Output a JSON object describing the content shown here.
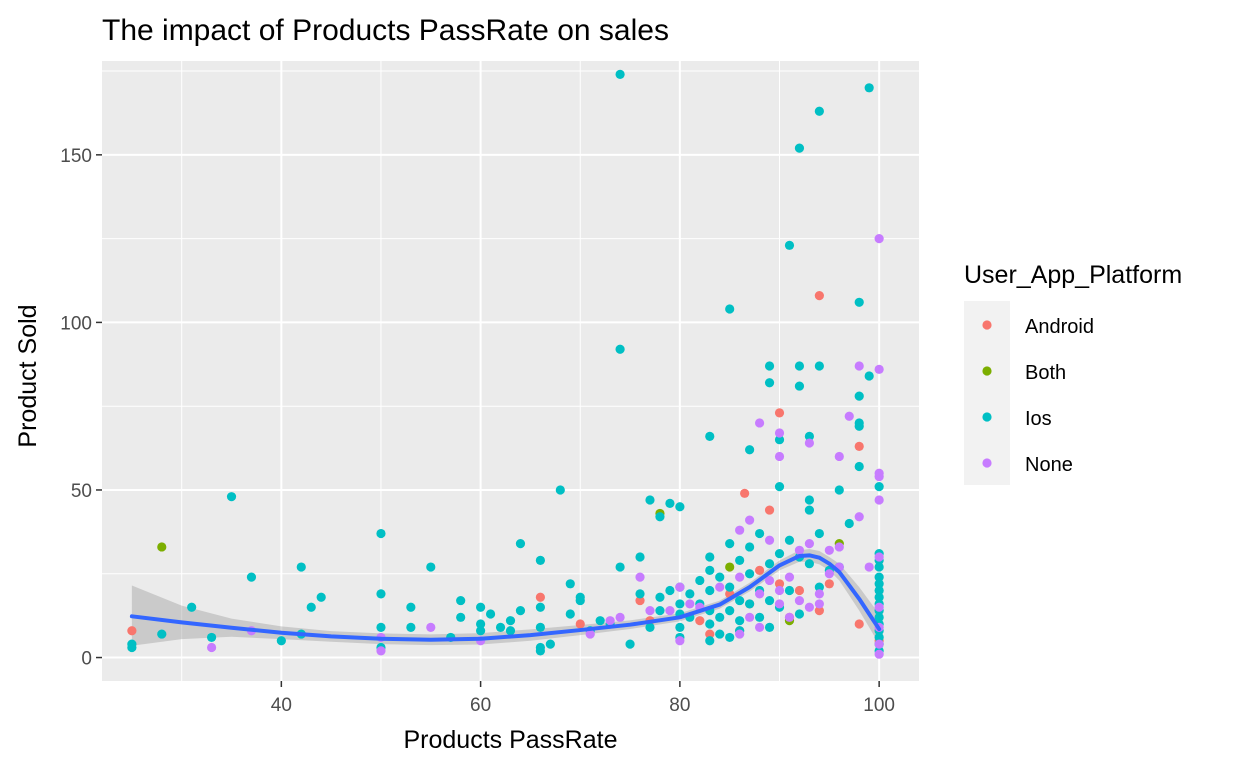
{
  "chart_data": {
    "type": "scatter",
    "title": "The impact of Products PassRate on sales",
    "xlabel": "Products PassRate",
    "ylabel": "Product Sold",
    "xlim": [
      22,
      104
    ],
    "ylim": [
      -7,
      178
    ],
    "x_ticks": [
      40,
      60,
      80,
      100
    ],
    "y_ticks": [
      0,
      50,
      100,
      150
    ],
    "x_tick_labels": [
      "40",
      "60",
      "80",
      "100"
    ],
    "y_tick_labels": [
      "0",
      "50",
      "100",
      "150"
    ],
    "grid": true,
    "panel_background": "#ebebeb",
    "legend": {
      "title": "User_App_Platform",
      "position": "right",
      "entries": [
        {
          "label": "Android",
          "color": "#f8766d"
        },
        {
          "label": "Both",
          "color": "#7cae00"
        },
        {
          "label": "Ios",
          "color": "#00bfc4"
        },
        {
          "label": "None",
          "color": "#c77cff"
        }
      ]
    },
    "series": [
      {
        "name": "Android",
        "color": "#f8766d",
        "points": [
          [
            25,
            8
          ],
          [
            66,
            18
          ],
          [
            70,
            10
          ],
          [
            76,
            17
          ],
          [
            77,
            11
          ],
          [
            82,
            11
          ],
          [
            83,
            7
          ],
          [
            85,
            19
          ],
          [
            86,
            8
          ],
          [
            86.5,
            49
          ],
          [
            87,
            16
          ],
          [
            88,
            26
          ],
          [
            89,
            44
          ],
          [
            90,
            73
          ],
          [
            90,
            22
          ],
          [
            91,
            12
          ],
          [
            92,
            20
          ],
          [
            94,
            108
          ],
          [
            94,
            14
          ],
          [
            95,
            22
          ],
          [
            98,
            63
          ],
          [
            98,
            10
          ],
          [
            100,
            5
          ]
        ]
      },
      {
        "name": "Both",
        "color": "#7cae00",
        "points": [
          [
            28,
            33
          ],
          [
            78,
            43
          ],
          [
            85,
            27
          ],
          [
            91,
            11
          ],
          [
            96,
            34
          ]
        ]
      },
      {
        "name": "Ios",
        "color": "#00bfc4",
        "points": [
          [
            25,
            3
          ],
          [
            25,
            4
          ],
          [
            28,
            7
          ],
          [
            31,
            15
          ],
          [
            33,
            6
          ],
          [
            35,
            48
          ],
          [
            37,
            24
          ],
          [
            40,
            5
          ],
          [
            42,
            27
          ],
          [
            42,
            7
          ],
          [
            43,
            15
          ],
          [
            44,
            18
          ],
          [
            50,
            37
          ],
          [
            50,
            19
          ],
          [
            50,
            9
          ],
          [
            50,
            3
          ],
          [
            53,
            15
          ],
          [
            53,
            9
          ],
          [
            55,
            27
          ],
          [
            57,
            6
          ],
          [
            58,
            17
          ],
          [
            58,
            12
          ],
          [
            60,
            15
          ],
          [
            60,
            10
          ],
          [
            60,
            8
          ],
          [
            61,
            13
          ],
          [
            62,
            9
          ],
          [
            63,
            8
          ],
          [
            63,
            11
          ],
          [
            64,
            14
          ],
          [
            64,
            34
          ],
          [
            66,
            29
          ],
          [
            66,
            15
          ],
          [
            66,
            9
          ],
          [
            66,
            3
          ],
          [
            66,
            2
          ],
          [
            67,
            4
          ],
          [
            68,
            50
          ],
          [
            69,
            13
          ],
          [
            69,
            22
          ],
          [
            70,
            18
          ],
          [
            70,
            17
          ],
          [
            71,
            8
          ],
          [
            72,
            11
          ],
          [
            73,
            10
          ],
          [
            74,
            174
          ],
          [
            74,
            92
          ],
          [
            74,
            27
          ],
          [
            75,
            4
          ],
          [
            76,
            30
          ],
          [
            76,
            19
          ],
          [
            77,
            47
          ],
          [
            77,
            9
          ],
          [
            78,
            42
          ],
          [
            78,
            18
          ],
          [
            78,
            14
          ],
          [
            79,
            46
          ],
          [
            79,
            20
          ],
          [
            80,
            45
          ],
          [
            80,
            21
          ],
          [
            80,
            16
          ],
          [
            80,
            13
          ],
          [
            80,
            9
          ],
          [
            80,
            6
          ],
          [
            81,
            12
          ],
          [
            81,
            19
          ],
          [
            82,
            23
          ],
          [
            82,
            16
          ],
          [
            83,
            66
          ],
          [
            83,
            30
          ],
          [
            83,
            26
          ],
          [
            83,
            20
          ],
          [
            83,
            14
          ],
          [
            83,
            10
          ],
          [
            83,
            5
          ],
          [
            84,
            24
          ],
          [
            84,
            12
          ],
          [
            84,
            7
          ],
          [
            85,
            104
          ],
          [
            85,
            34
          ],
          [
            85,
            21
          ],
          [
            85,
            14
          ],
          [
            85,
            6
          ],
          [
            86,
            29
          ],
          [
            86,
            17
          ],
          [
            86,
            11
          ],
          [
            86,
            8
          ],
          [
            87,
            62
          ],
          [
            87,
            33
          ],
          [
            87,
            25
          ],
          [
            87,
            16
          ],
          [
            88,
            37
          ],
          [
            88,
            20
          ],
          [
            88,
            12
          ],
          [
            89,
            87
          ],
          [
            89,
            82
          ],
          [
            89,
            28
          ],
          [
            89,
            17
          ],
          [
            89,
            9
          ],
          [
            90,
            65
          ],
          [
            90,
            51
          ],
          [
            90,
            31
          ],
          [
            90,
            15
          ],
          [
            91,
            123
          ],
          [
            91,
            35
          ],
          [
            91,
            20
          ],
          [
            92,
            152
          ],
          [
            92,
            87
          ],
          [
            92,
            81
          ],
          [
            92,
            30
          ],
          [
            92,
            13
          ],
          [
            93,
            66
          ],
          [
            93,
            47
          ],
          [
            93,
            44
          ],
          [
            93,
            28
          ],
          [
            94,
            163
          ],
          [
            94,
            87
          ],
          [
            94,
            37
          ],
          [
            94,
            21
          ],
          [
            95,
            26
          ],
          [
            96,
            50
          ],
          [
            96,
            27
          ],
          [
            97,
            40
          ],
          [
            98,
            106
          ],
          [
            98,
            78
          ],
          [
            98,
            70
          ],
          [
            98,
            57
          ],
          [
            98,
            69
          ],
          [
            99,
            170
          ],
          [
            99,
            84
          ],
          [
            100,
            51
          ],
          [
            100,
            31
          ],
          [
            100,
            29
          ],
          [
            100,
            27
          ],
          [
            100,
            24
          ],
          [
            100,
            22
          ],
          [
            100,
            20
          ],
          [
            100,
            18
          ],
          [
            100,
            16
          ],
          [
            100,
            14
          ],
          [
            100,
            12
          ],
          [
            100,
            10
          ],
          [
            100,
            8
          ],
          [
            100,
            6
          ],
          [
            100,
            4
          ],
          [
            100,
            2
          ]
        ]
      },
      {
        "name": "None",
        "color": "#c77cff",
        "points": [
          [
            33,
            3
          ],
          [
            37,
            8
          ],
          [
            50,
            6
          ],
          [
            50,
            2
          ],
          [
            55,
            9
          ],
          [
            60,
            5
          ],
          [
            71,
            7
          ],
          [
            73,
            11
          ],
          [
            74,
            12
          ],
          [
            76,
            24
          ],
          [
            77,
            14
          ],
          [
            79,
            14
          ],
          [
            80,
            21
          ],
          [
            80,
            5
          ],
          [
            81,
            16
          ],
          [
            82,
            15
          ],
          [
            84,
            21
          ],
          [
            86,
            38
          ],
          [
            86,
            24
          ],
          [
            86,
            7
          ],
          [
            87,
            41
          ],
          [
            87,
            12
          ],
          [
            88,
            70
          ],
          [
            88,
            19
          ],
          [
            88,
            9
          ],
          [
            89,
            35
          ],
          [
            89,
            23
          ],
          [
            90,
            67
          ],
          [
            90,
            60
          ],
          [
            90,
            20
          ],
          [
            90,
            16
          ],
          [
            91,
            24
          ],
          [
            91,
            12
          ],
          [
            92,
            32
          ],
          [
            92,
            17
          ],
          [
            93,
            64
          ],
          [
            93,
            34
          ],
          [
            93,
            15
          ],
          [
            94,
            19
          ],
          [
            94,
            16
          ],
          [
            95,
            25
          ],
          [
            95,
            32
          ],
          [
            96,
            60
          ],
          [
            96,
            33
          ],
          [
            96,
            27
          ],
          [
            97,
            72
          ],
          [
            98,
            87
          ],
          [
            98,
            42
          ],
          [
            99,
            27
          ],
          [
            100,
            125
          ],
          [
            100,
            86
          ],
          [
            100,
            55
          ],
          [
            100,
            54
          ],
          [
            100,
            47
          ],
          [
            100,
            30
          ],
          [
            100,
            15
          ],
          [
            100,
            9
          ],
          [
            100,
            4
          ],
          [
            100,
            1
          ]
        ]
      }
    ],
    "smooth_line": {
      "color": "#3366ff",
      "band_color": "#999999",
      "points": [
        [
          25,
          12.3
        ],
        [
          30,
          10.5
        ],
        [
          35,
          8.9
        ],
        [
          40,
          7.4
        ],
        [
          45,
          6.3
        ],
        [
          50,
          5.6
        ],
        [
          55,
          5.3
        ],
        [
          60,
          5.6
        ],
        [
          65,
          6.7
        ],
        [
          70,
          8.2
        ],
        [
          75,
          9.8
        ],
        [
          80,
          12.0
        ],
        [
          84,
          15.8
        ],
        [
          87,
          21.0
        ],
        [
          90,
          27.5
        ],
        [
          92,
          30.3
        ],
        [
          93,
          30.5
        ],
        [
          94,
          29.8
        ],
        [
          95,
          28.0
        ],
        [
          96,
          25.5
        ],
        [
          97,
          21.5
        ],
        [
          98,
          17.5
        ],
        [
          99,
          13.0
        ],
        [
          100,
          8.5
        ]
      ],
      "upper": [
        [
          25,
          21.5
        ],
        [
          30,
          15.5
        ],
        [
          35,
          11.6
        ],
        [
          40,
          9.3
        ],
        [
          45,
          7.9
        ],
        [
          50,
          7.2
        ],
        [
          55,
          6.9
        ],
        [
          60,
          7.3
        ],
        [
          65,
          8.4
        ],
        [
          70,
          9.7
        ],
        [
          75,
          11.1
        ],
        [
          80,
          13.2
        ],
        [
          84,
          17.0
        ],
        [
          87,
          22.3
        ],
        [
          90,
          29.0
        ],
        [
          92,
          32.0
        ],
        [
          93,
          32.4
        ],
        [
          94,
          31.8
        ],
        [
          95,
          30.0
        ],
        [
          96,
          28.0
        ],
        [
          97,
          24.5
        ],
        [
          98,
          21.0
        ],
        [
          99,
          17.0
        ],
        [
          100,
          13.0
        ]
      ],
      "lower": [
        [
          25,
          3.5
        ],
        [
          30,
          5.5
        ],
        [
          35,
          6.2
        ],
        [
          40,
          5.5
        ],
        [
          45,
          4.7
        ],
        [
          50,
          4.0
        ],
        [
          55,
          3.7
        ],
        [
          60,
          3.9
        ],
        [
          65,
          5.0
        ],
        [
          70,
          6.7
        ],
        [
          75,
          8.5
        ],
        [
          80,
          10.8
        ],
        [
          84,
          14.6
        ],
        [
          87,
          19.7
        ],
        [
          90,
          26.0
        ],
        [
          92,
          28.6
        ],
        [
          93,
          28.6
        ],
        [
          94,
          27.8
        ],
        [
          95,
          26.0
        ],
        [
          96,
          23.0
        ],
        [
          97,
          18.5
        ],
        [
          98,
          14.0
        ],
        [
          99,
          9.0
        ],
        [
          100,
          4.0
        ]
      ]
    }
  }
}
